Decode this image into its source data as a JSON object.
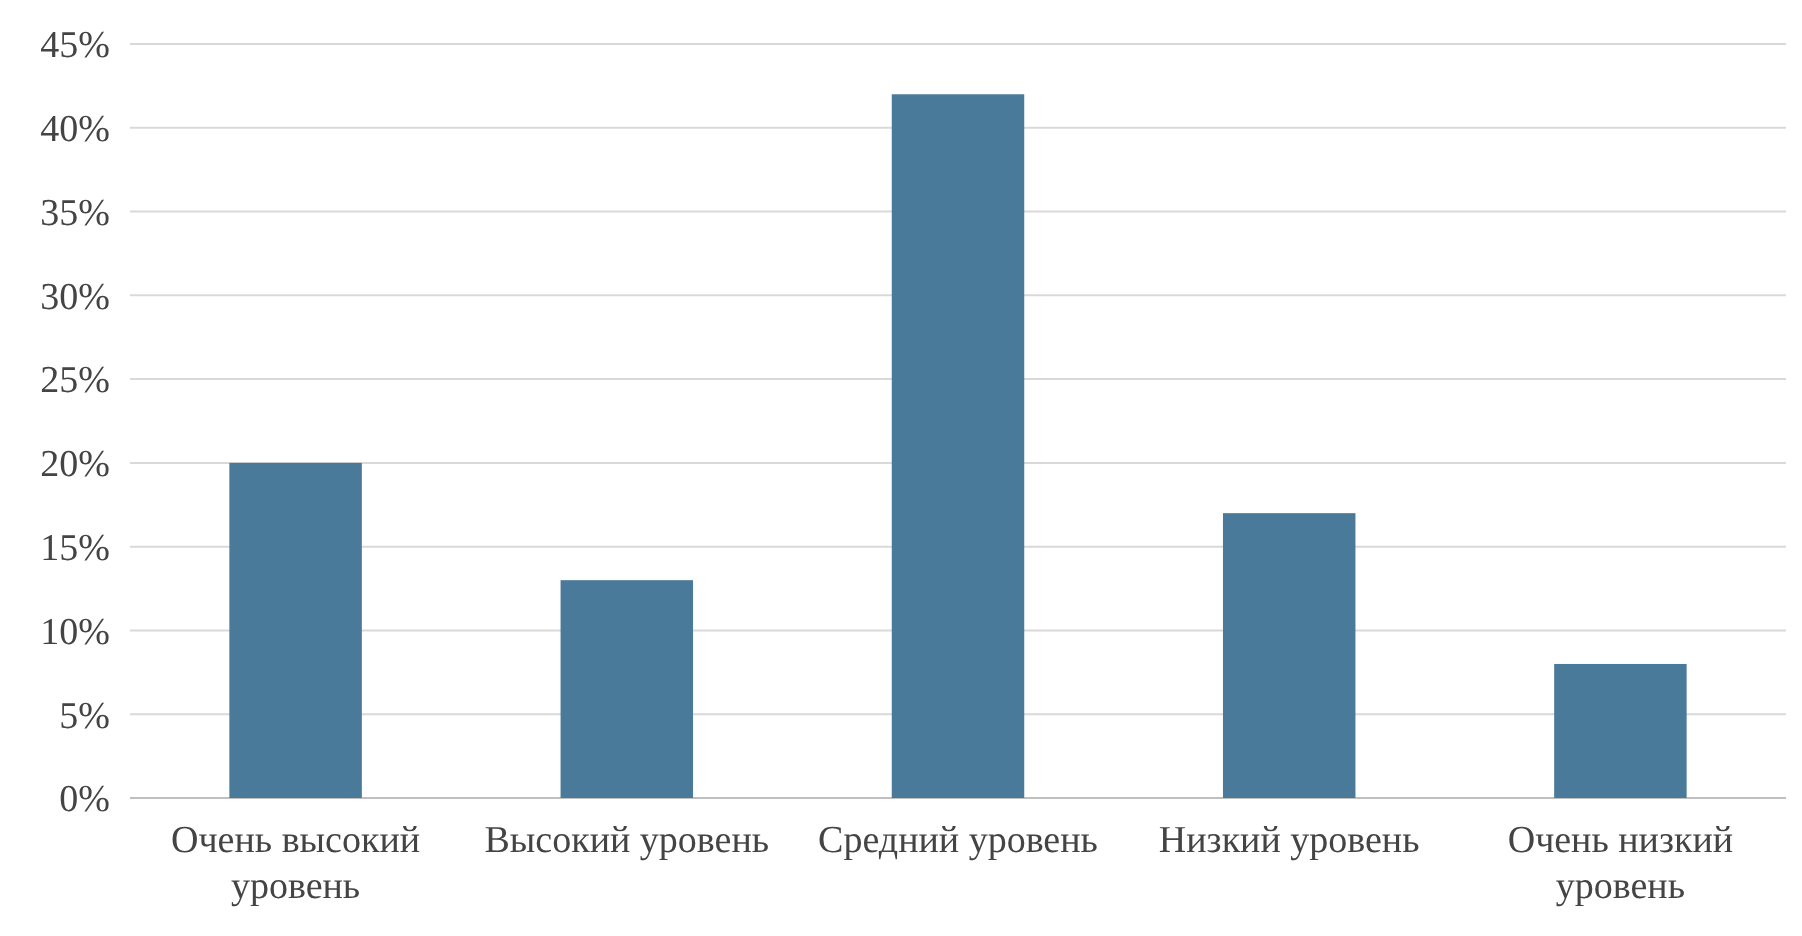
{
  "chart_data": {
    "type": "bar",
    "categories": [
      "Очень высокий уровень",
      "Высокий уровень",
      "Средний уровень",
      "Низкий уровень",
      "Очень низкий уровень"
    ],
    "values": [
      20,
      13,
      42,
      17,
      8
    ],
    "color": "#4a7a9a",
    "ylim": [
      0,
      45
    ],
    "yticks": [
      {
        "value": 0,
        "label": "0%"
      },
      {
        "value": 5,
        "label": "5%"
      },
      {
        "value": 10,
        "label": "10%"
      },
      {
        "value": 15,
        "label": "15%"
      },
      {
        "value": 20,
        "label": "20%"
      },
      {
        "value": 25,
        "label": "25%"
      },
      {
        "value": 30,
        "label": "30%"
      },
      {
        "value": 35,
        "label": "35%"
      },
      {
        "value": 40,
        "label": "40%"
      },
      {
        "value": 45,
        "label": "45%"
      }
    ],
    "grid": "y"
  }
}
